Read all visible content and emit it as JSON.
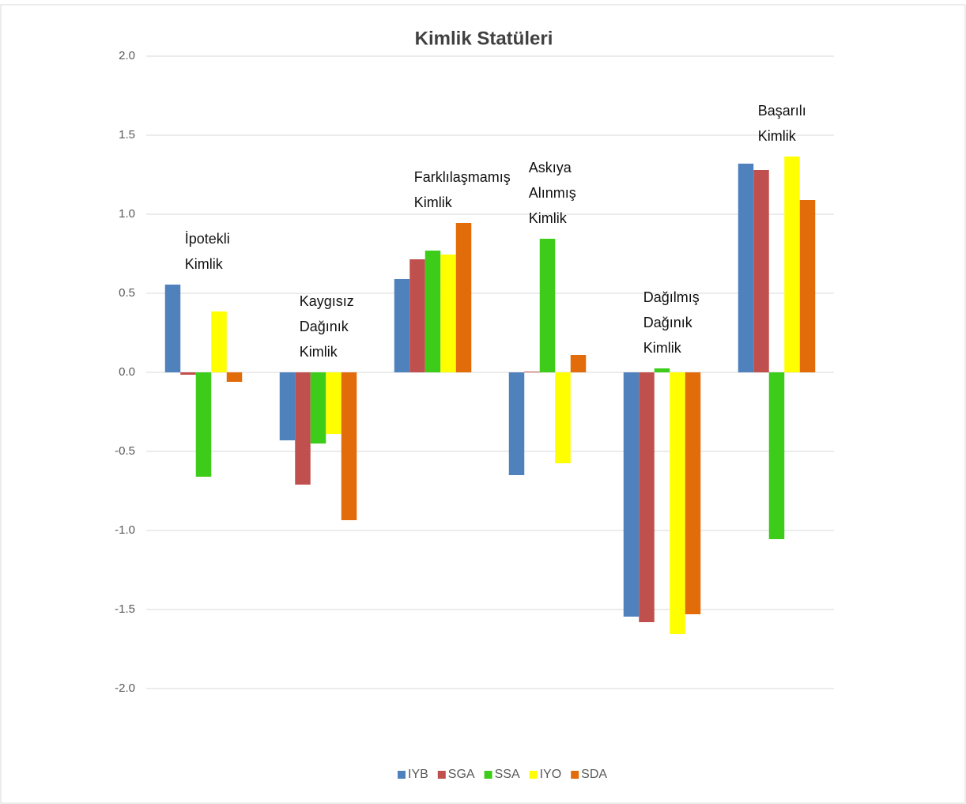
{
  "chart_data": {
    "type": "bar",
    "title": "Kimlik Statüleri",
    "categories": [
      "İpotekli Kimlik",
      "Kaygısız Dağınık Kimlik",
      "Farklılaşmamış Kimlik",
      "Askıya Alınmış Kimlik",
      "Dağılmış Dağınık Kimlik",
      "Başarılı Kimlik"
    ],
    "series": [
      {
        "name": "IYB",
        "color": "#4f81bd",
        "values": [
          0.555,
          -0.43,
          0.59,
          -0.65,
          -1.545,
          1.32
        ]
      },
      {
        "name": "SGA",
        "color": "#c0504d",
        "values": [
          -0.015,
          -0.71,
          0.715,
          0.005,
          -1.58,
          1.28
        ]
      },
      {
        "name": "SSA",
        "color": "#3dcc1a",
        "values": [
          -0.66,
          -0.45,
          0.77,
          0.845,
          0.025,
          -1.055
        ]
      },
      {
        "name": "IYO",
        "color": "#ffff00",
        "values": [
          0.385,
          -0.39,
          0.745,
          -0.575,
          -1.655,
          1.365
        ]
      },
      {
        "name": "SDA",
        "color": "#e36c0a",
        "values": [
          -0.06,
          -0.935,
          0.945,
          0.11,
          -1.53,
          1.09
        ]
      }
    ],
    "ylim": [
      -2,
      2
    ],
    "yticks": [
      {
        "value": 2,
        "label": "2.0"
      },
      {
        "value": 1.5,
        "label": "1.5"
      },
      {
        "value": 1,
        "label": "1.0"
      },
      {
        "value": 0.5,
        "label": "0.5"
      },
      {
        "value": 0,
        "label": "0.0"
      },
      {
        "value": -0.5,
        "label": "-0.5"
      },
      {
        "value": -1,
        "label": "-1.0"
      },
      {
        "value": -1.5,
        "label": "-1.5"
      },
      {
        "value": -2,
        "label": "-2.0"
      }
    ],
    "grid": true,
    "legend": "bottom"
  }
}
